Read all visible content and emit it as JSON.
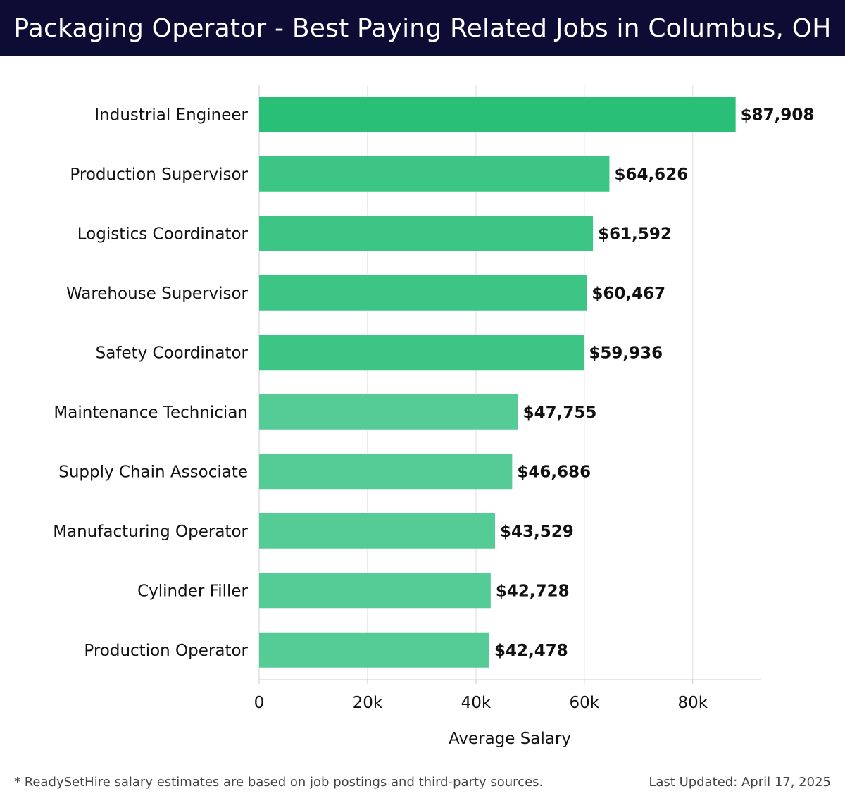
{
  "header": {
    "title": "Packaging Operator - Best Paying Related Jobs in Columbus, OH"
  },
  "chart_data": {
    "type": "bar",
    "orientation": "horizontal",
    "categories": [
      "Industrial Engineer",
      "Production Supervisor",
      "Logistics Coordinator",
      "Warehouse Supervisor",
      "Safety Coordinator",
      "Maintenance Technician",
      "Supply Chain Associate",
      "Manufacturing Operator",
      "Cylinder Filler",
      "Production Operator"
    ],
    "values": [
      87908,
      64626,
      61592,
      60467,
      59936,
      47755,
      46686,
      43529,
      42728,
      42478
    ],
    "value_labels": [
      "$87,908",
      "$64,626",
      "$61,592",
      "$60,467",
      "$59,936",
      "$47,755",
      "$46,686",
      "$43,529",
      "$42,728",
      "$42,478"
    ],
    "xticks": [
      0,
      20000,
      40000,
      60000,
      80000
    ],
    "xtick_labels": [
      "0",
      "20k",
      "40k",
      "60k",
      "80k"
    ],
    "xlim": [
      0,
      92500
    ],
    "xlabel": "Average Salary",
    "grid": "vertical",
    "colors": {
      "top_bar": "#2abf77",
      "upper_bars": "#3cc584",
      "lower_bars": "#55cc95",
      "grid": "#dddddd",
      "axis": "#cccccc"
    }
  },
  "footer": {
    "note": "* ReadySetHire salary estimates are based on job postings and third-party sources.",
    "updated": "Last Updated: April 17, 2025"
  }
}
